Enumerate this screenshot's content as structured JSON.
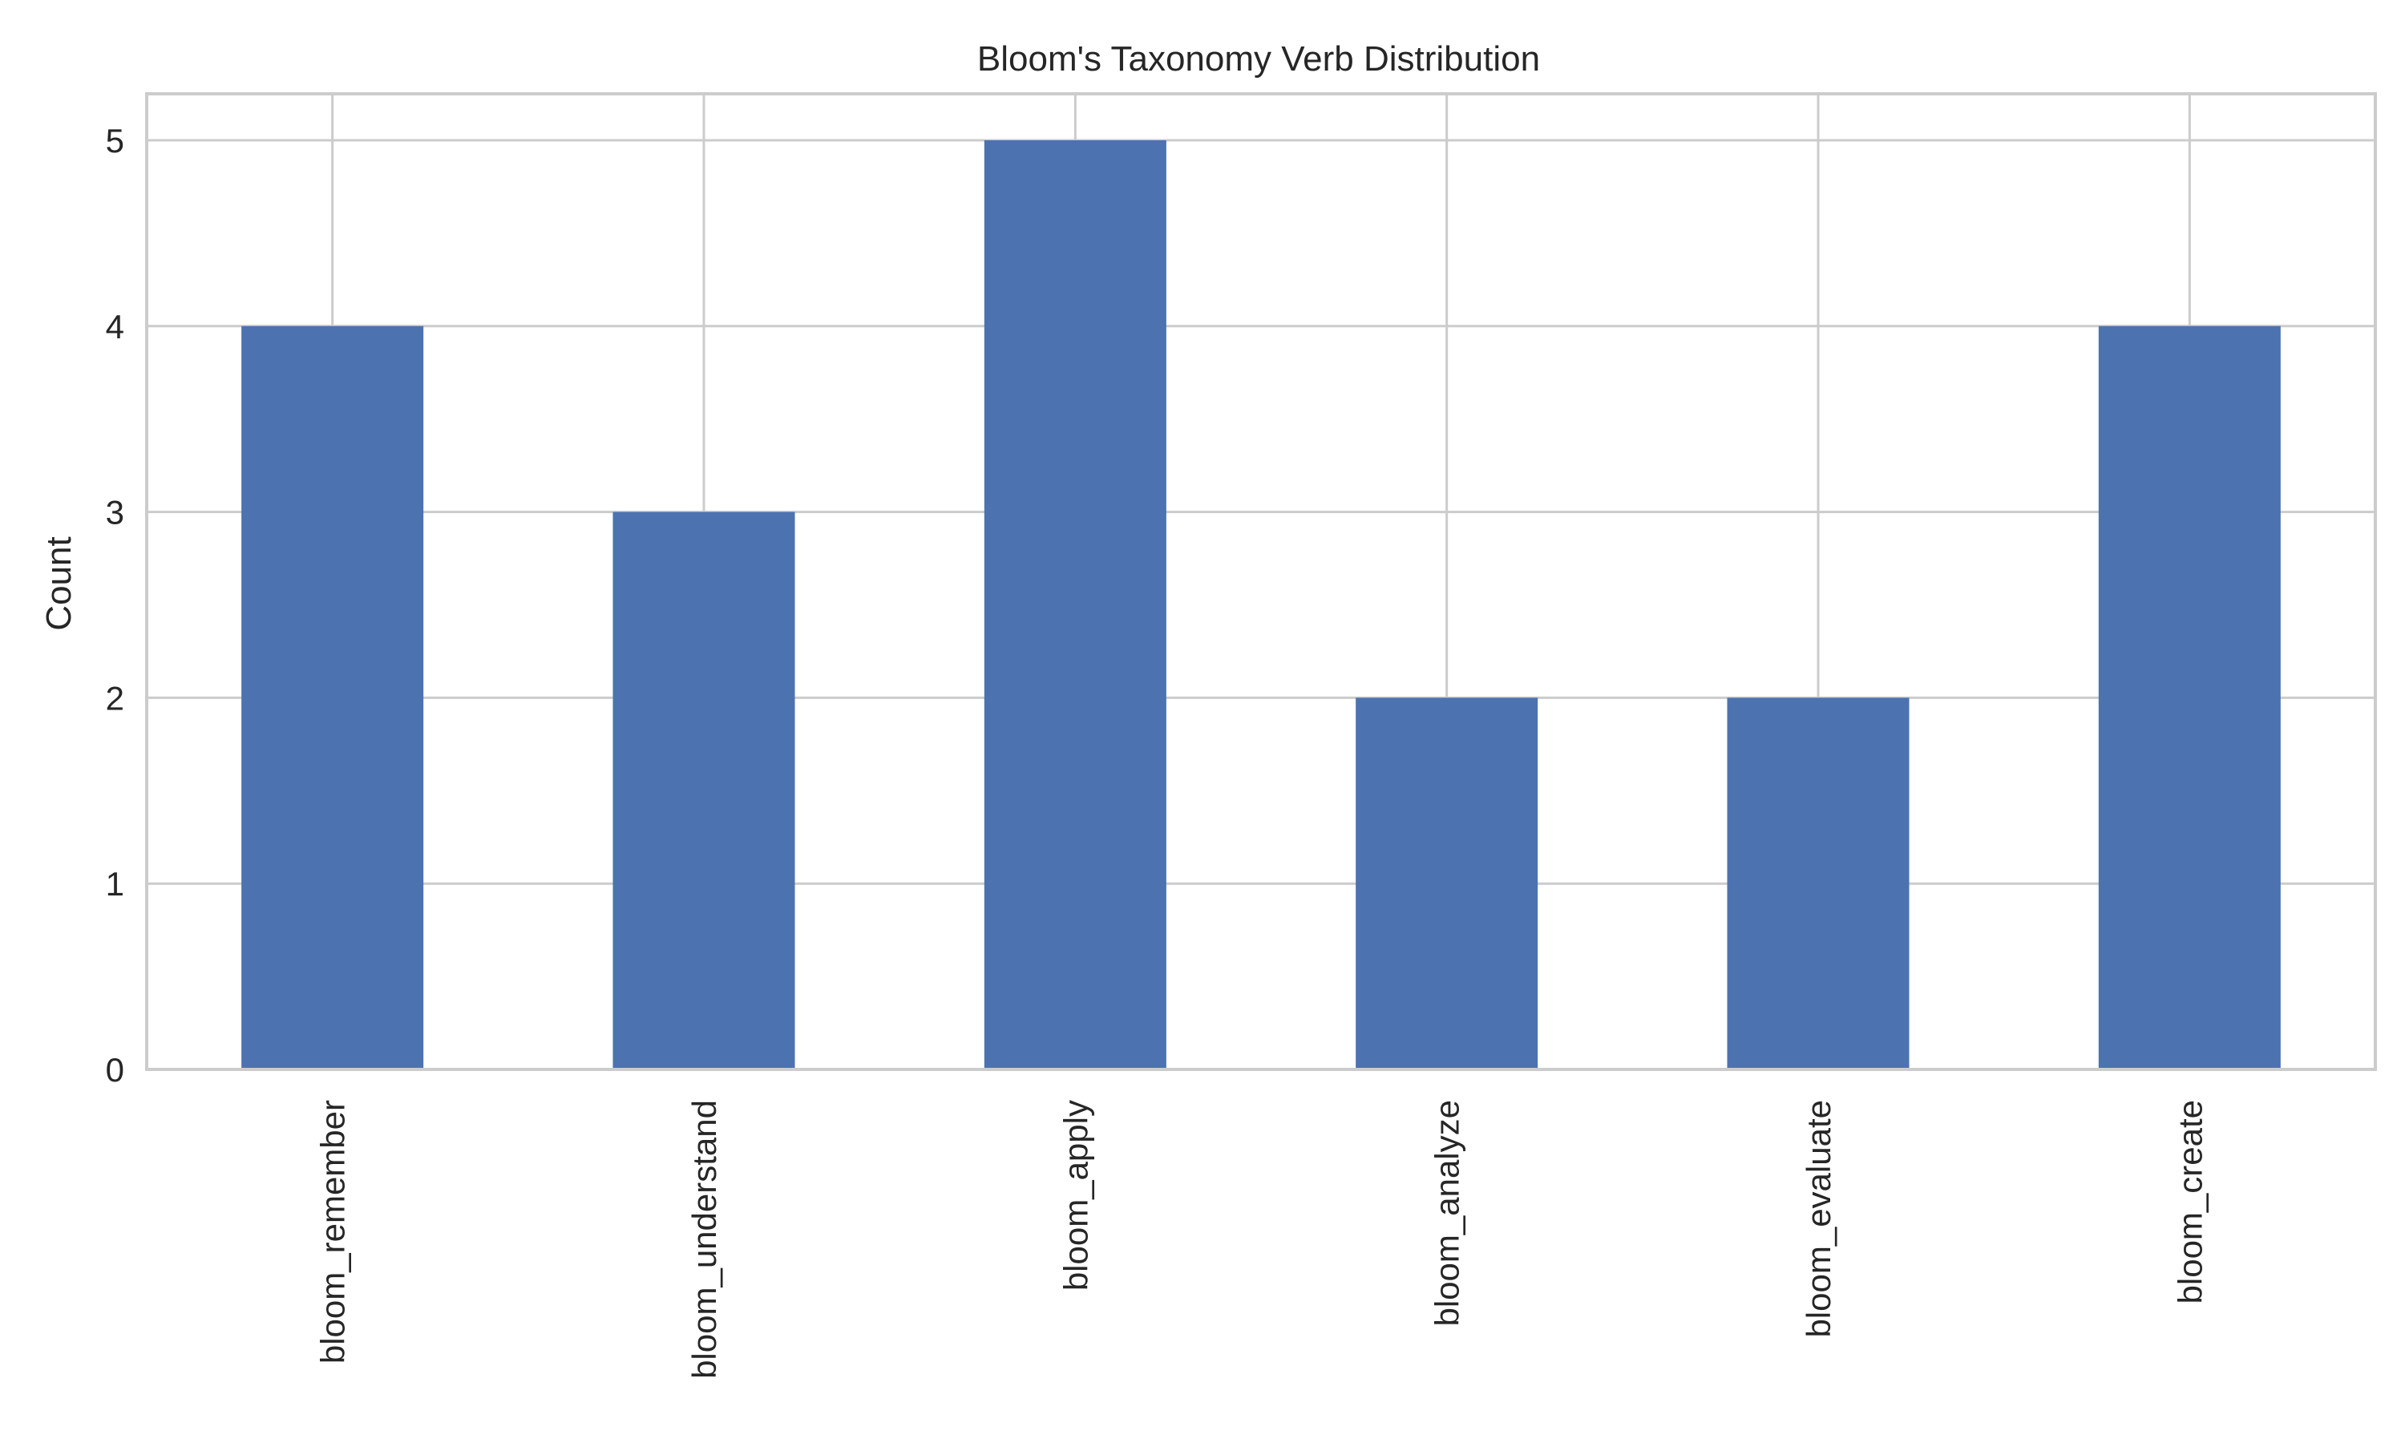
{
  "chart_data": {
    "type": "bar",
    "title": "Bloom's Taxonomy Verb Distribution",
    "xlabel": "",
    "ylabel": "Count",
    "categories": [
      "bloom_remember",
      "bloom_understand",
      "bloom_apply",
      "bloom_analyze",
      "bloom_evaluate",
      "bloom_create"
    ],
    "values": [
      4,
      3,
      5,
      2,
      2,
      4
    ],
    "yticks": [
      0,
      1,
      2,
      3,
      4,
      5
    ],
    "ylim": [
      0,
      5.25
    ],
    "grid": true,
    "bar_color": "#4c72b0",
    "grid_color": "#cccccc"
  }
}
